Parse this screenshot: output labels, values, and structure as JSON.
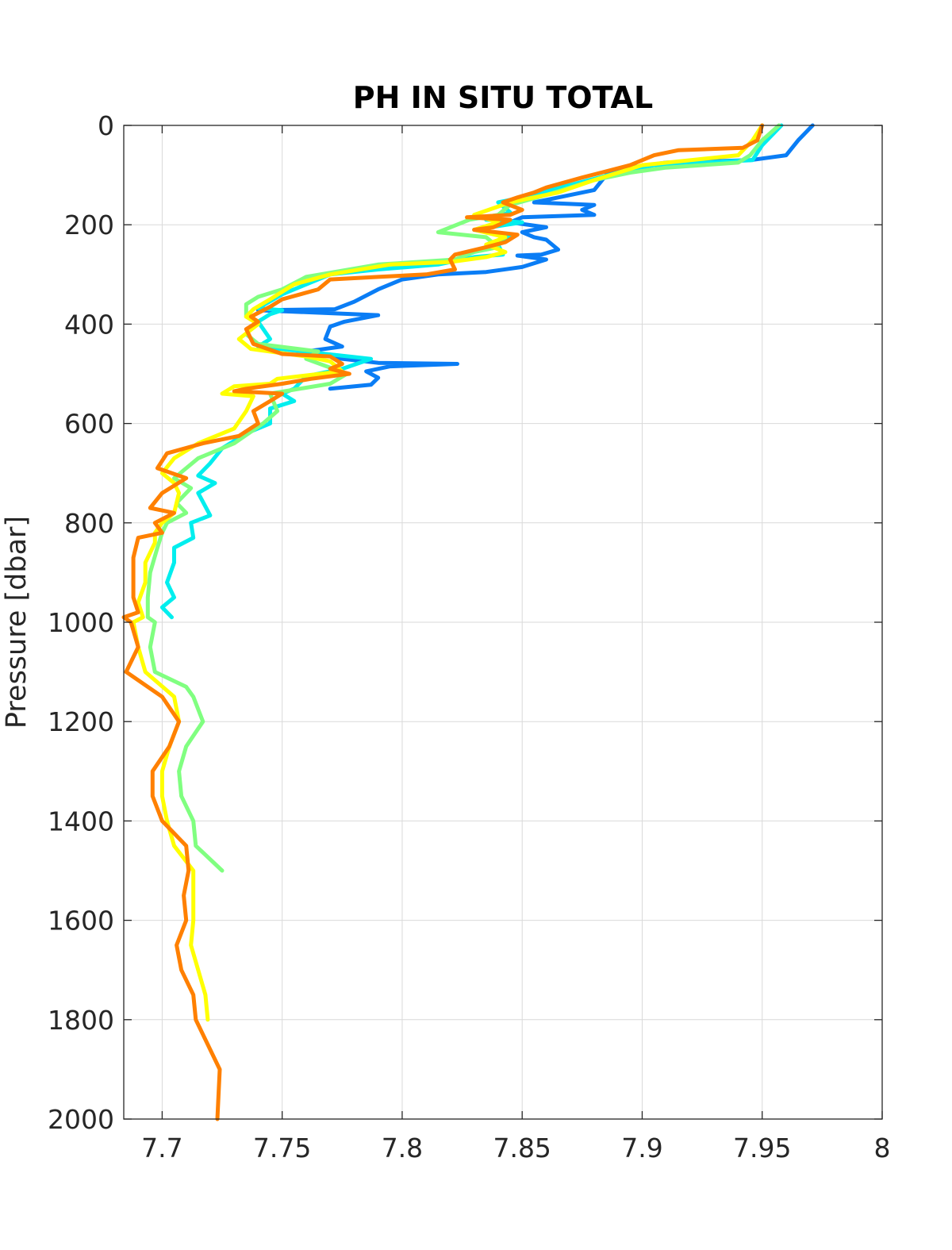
{
  "chart_data": {
    "type": "line",
    "title": "PH IN SITU TOTAL",
    "xlabel": "",
    "ylabel": "Pressure [dbar]",
    "xlim": [
      7.684,
      8.0
    ],
    "ylim": [
      0,
      2000
    ],
    "y_reversed": true,
    "grid": true,
    "legend": "none",
    "x_ticks": [
      "7.7",
      "7.75",
      "7.8",
      "7.85",
      "7.9",
      "7.95",
      "8"
    ],
    "y_ticks": [
      "0",
      "200",
      "400",
      "600",
      "800",
      "1000",
      "1200",
      "1400",
      "1600",
      "1800",
      "2000"
    ],
    "series": [
      {
        "color": "#0a7df5",
        "points": [
          [
            7.971,
            0
          ],
          [
            7.965,
            30
          ],
          [
            7.96,
            60
          ],
          [
            7.945,
            70
          ],
          [
            7.91,
            75
          ],
          [
            7.895,
            85
          ],
          [
            7.885,
            100
          ],
          [
            7.88,
            130
          ],
          [
            7.865,
            145
          ],
          [
            7.855,
            155
          ],
          [
            7.88,
            160
          ],
          [
            7.875,
            170
          ],
          [
            7.88,
            180
          ],
          [
            7.85,
            185
          ],
          [
            7.845,
            195
          ],
          [
            7.86,
            205
          ],
          [
            7.85,
            215
          ],
          [
            7.855,
            225
          ],
          [
            7.86,
            230
          ],
          [
            7.865,
            250
          ],
          [
            7.858,
            260
          ],
          [
            7.848,
            262
          ],
          [
            7.86,
            270
          ],
          [
            7.85,
            285
          ],
          [
            7.835,
            295
          ],
          [
            7.815,
            300
          ],
          [
            7.8,
            310
          ],
          [
            7.79,
            330
          ],
          [
            7.78,
            355
          ],
          [
            7.772,
            370
          ],
          [
            7.74,
            372
          ],
          [
            7.79,
            382
          ],
          [
            7.776,
            395
          ],
          [
            7.77,
            405
          ],
          [
            7.768,
            430
          ],
          [
            7.775,
            445
          ],
          [
            7.76,
            455
          ],
          [
            7.775,
            470
          ],
          [
            7.79,
            478
          ],
          [
            7.823,
            480
          ],
          [
            7.795,
            485
          ],
          [
            7.785,
            495
          ],
          [
            7.79,
            508
          ],
          [
            7.787,
            522
          ],
          [
            7.77,
            530
          ]
        ]
      },
      {
        "color": "#00eeee",
        "points": [
          [
            7.958,
            0
          ],
          [
            7.95,
            40
          ],
          [
            7.946,
            70
          ],
          [
            7.905,
            80
          ],
          [
            7.89,
            95
          ],
          [
            7.87,
            120
          ],
          [
            7.85,
            145
          ],
          [
            7.84,
            155
          ],
          [
            7.845,
            175
          ],
          [
            7.835,
            190
          ],
          [
            7.85,
            195
          ],
          [
            7.83,
            210
          ],
          [
            7.845,
            225
          ],
          [
            7.84,
            240
          ],
          [
            7.842,
            260
          ],
          [
            7.83,
            265
          ],
          [
            7.815,
            280
          ],
          [
            7.79,
            290
          ],
          [
            7.77,
            300
          ],
          [
            7.76,
            320
          ],
          [
            7.75,
            340
          ],
          [
            7.74,
            368
          ],
          [
            7.75,
            372
          ],
          [
            7.745,
            380
          ],
          [
            7.74,
            395
          ],
          [
            7.745,
            430
          ],
          [
            7.74,
            445
          ],
          [
            7.787,
            470
          ],
          [
            7.775,
            490
          ],
          [
            7.76,
            505
          ],
          [
            7.755,
            530
          ],
          [
            7.75,
            540
          ],
          [
            7.755,
            555
          ],
          [
            7.745,
            570
          ],
          [
            7.745,
            600
          ],
          [
            7.735,
            620
          ],
          [
            7.725,
            650
          ],
          [
            7.72,
            680
          ],
          [
            7.715,
            705
          ],
          [
            7.722,
            720
          ],
          [
            7.715,
            740
          ],
          [
            7.72,
            785
          ],
          [
            7.712,
            800
          ],
          [
            7.713,
            830
          ],
          [
            7.705,
            850
          ],
          [
            7.705,
            880
          ],
          [
            7.702,
            920
          ],
          [
            7.705,
            950
          ],
          [
            7.7,
            970
          ],
          [
            7.704,
            990
          ]
        ]
      },
      {
        "color": "#80ff80",
        "points": [
          [
            7.957,
            0
          ],
          [
            7.95,
            30
          ],
          [
            7.945,
            60
          ],
          [
            7.94,
            75
          ],
          [
            7.91,
            85
          ],
          [
            7.895,
            95
          ],
          [
            7.88,
            110
          ],
          [
            7.86,
            140
          ],
          [
            7.845,
            160
          ],
          [
            7.84,
            180
          ],
          [
            7.828,
            190
          ],
          [
            7.815,
            215
          ],
          [
            7.835,
            225
          ],
          [
            7.84,
            245
          ],
          [
            7.83,
            255
          ],
          [
            7.822,
            270
          ],
          [
            7.79,
            280
          ],
          [
            7.76,
            305
          ],
          [
            7.75,
            330
          ],
          [
            7.74,
            345
          ],
          [
            7.735,
            360
          ],
          [
            7.735,
            385
          ],
          [
            7.74,
            395
          ],
          [
            7.735,
            420
          ],
          [
            7.74,
            440
          ],
          [
            7.765,
            455
          ],
          [
            7.76,
            470
          ],
          [
            7.777,
            500
          ],
          [
            7.77,
            520
          ],
          [
            7.745,
            540
          ],
          [
            7.748,
            575
          ],
          [
            7.742,
            600
          ],
          [
            7.73,
            640
          ],
          [
            7.715,
            670
          ],
          [
            7.705,
            710
          ],
          [
            7.712,
            730
          ],
          [
            7.706,
            760
          ],
          [
            7.71,
            780
          ],
          [
            7.702,
            800
          ],
          [
            7.7,
            820
          ],
          [
            7.698,
            850
          ],
          [
            7.695,
            900
          ],
          [
            7.694,
            950
          ],
          [
            7.694,
            990
          ],
          [
            7.697,
            1000
          ],
          [
            7.695,
            1050
          ],
          [
            7.697,
            1100
          ],
          [
            7.71,
            1130
          ],
          [
            7.713,
            1150
          ],
          [
            7.717,
            1200
          ],
          [
            7.71,
            1250
          ],
          [
            7.707,
            1300
          ],
          [
            7.708,
            1350
          ],
          [
            7.713,
            1400
          ],
          [
            7.714,
            1450
          ],
          [
            7.725,
            1500
          ]
        ]
      },
      {
        "color": "#ffff00",
        "points": [
          [
            7.95,
            0
          ],
          [
            7.946,
            30
          ],
          [
            7.94,
            60
          ],
          [
            7.92,
            70
          ],
          [
            7.9,
            80
          ],
          [
            7.88,
            110
          ],
          [
            7.865,
            135
          ],
          [
            7.845,
            155
          ],
          [
            7.83,
            180
          ],
          [
            7.84,
            195
          ],
          [
            7.83,
            210
          ],
          [
            7.843,
            225
          ],
          [
            7.835,
            240
          ],
          [
            7.843,
            255
          ],
          [
            7.835,
            265
          ],
          [
            7.82,
            275
          ],
          [
            7.795,
            280
          ],
          [
            7.77,
            300
          ],
          [
            7.755,
            320
          ],
          [
            7.745,
            350
          ],
          [
            7.738,
            370
          ],
          [
            7.735,
            385
          ],
          [
            7.74,
            400
          ],
          [
            7.732,
            430
          ],
          [
            7.737,
            450
          ],
          [
            7.76,
            465
          ],
          [
            7.77,
            475
          ],
          [
            7.775,
            495
          ],
          [
            7.748,
            510
          ],
          [
            7.745,
            520
          ],
          [
            7.73,
            525
          ],
          [
            7.725,
            540
          ],
          [
            7.738,
            545
          ],
          [
            7.735,
            575
          ],
          [
            7.73,
            610
          ],
          [
            7.715,
            640
          ],
          [
            7.705,
            670
          ],
          [
            7.7,
            700
          ],
          [
            7.705,
            720
          ],
          [
            7.707,
            740
          ],
          [
            7.705,
            780
          ],
          [
            7.7,
            800
          ],
          [
            7.697,
            820
          ],
          [
            7.697,
            840
          ],
          [
            7.693,
            880
          ],
          [
            7.693,
            920
          ],
          [
            7.69,
            960
          ],
          [
            7.692,
            990
          ],
          [
            7.688,
            1000
          ],
          [
            7.69,
            1050
          ],
          [
            7.693,
            1100
          ],
          [
            7.705,
            1150
          ],
          [
            7.707,
            1200
          ],
          [
            7.703,
            1250
          ],
          [
            7.7,
            1300
          ],
          [
            7.7,
            1350
          ],
          [
            7.702,
            1400
          ],
          [
            7.705,
            1450
          ],
          [
            7.713,
            1500
          ],
          [
            7.713,
            1550
          ],
          [
            7.713,
            1600
          ],
          [
            7.712,
            1650
          ],
          [
            7.715,
            1700
          ],
          [
            7.718,
            1750
          ],
          [
            7.719,
            1800
          ]
        ]
      },
      {
        "color": "#ff8000",
        "points": [
          [
            7.95,
            0
          ],
          [
            7.948,
            30
          ],
          [
            7.942,
            45
          ],
          [
            7.915,
            50
          ],
          [
            7.905,
            60
          ],
          [
            7.895,
            80
          ],
          [
            7.875,
            105
          ],
          [
            7.86,
            125
          ],
          [
            7.855,
            135
          ],
          [
            7.848,
            145
          ],
          [
            7.842,
            155
          ],
          [
            7.85,
            170
          ],
          [
            7.845,
            180
          ],
          [
            7.827,
            185
          ],
          [
            7.845,
            190
          ],
          [
            7.838,
            205
          ],
          [
            7.83,
            210
          ],
          [
            7.848,
            220
          ],
          [
            7.843,
            235
          ],
          [
            7.835,
            245
          ],
          [
            7.822,
            260
          ],
          [
            7.82,
            270
          ],
          [
            7.822,
            290
          ],
          [
            7.81,
            300
          ],
          [
            7.79,
            305
          ],
          [
            7.77,
            310
          ],
          [
            7.765,
            330
          ],
          [
            7.75,
            350
          ],
          [
            7.745,
            365
          ],
          [
            7.737,
            385
          ],
          [
            7.74,
            395
          ],
          [
            7.735,
            410
          ],
          [
            7.738,
            440
          ],
          [
            7.75,
            460
          ],
          [
            7.77,
            465
          ],
          [
            7.775,
            480
          ],
          [
            7.77,
            490
          ],
          [
            7.778,
            500
          ],
          [
            7.762,
            510
          ],
          [
            7.75,
            520
          ],
          [
            7.735,
            530
          ],
          [
            7.73,
            535
          ],
          [
            7.75,
            540
          ],
          [
            7.745,
            555
          ],
          [
            7.738,
            575
          ],
          [
            7.74,
            600
          ],
          [
            7.732,
            625
          ],
          [
            7.717,
            640
          ],
          [
            7.702,
            660
          ],
          [
            7.698,
            690
          ],
          [
            7.71,
            710
          ],
          [
            7.7,
            740
          ],
          [
            7.695,
            770
          ],
          [
            7.705,
            780
          ],
          [
            7.697,
            800
          ],
          [
            7.7,
            820
          ],
          [
            7.69,
            830
          ],
          [
            7.688,
            870
          ],
          [
            7.688,
            910
          ],
          [
            7.688,
            950
          ],
          [
            7.69,
            980
          ],
          [
            7.684,
            990
          ],
          [
            7.687,
            1000
          ],
          [
            7.69,
            1050
          ],
          [
            7.685,
            1100
          ],
          [
            7.7,
            1150
          ],
          [
            7.707,
            1200
          ],
          [
            7.703,
            1250
          ],
          [
            7.696,
            1300
          ],
          [
            7.696,
            1350
          ],
          [
            7.7,
            1400
          ],
          [
            7.71,
            1450
          ],
          [
            7.711,
            1500
          ],
          [
            7.709,
            1550
          ],
          [
            7.71,
            1600
          ],
          [
            7.706,
            1650
          ],
          [
            7.708,
            1700
          ],
          [
            7.713,
            1750
          ],
          [
            7.714,
            1800
          ],
          [
            7.724,
            1900
          ],
          [
            7.723,
            2000
          ]
        ]
      }
    ]
  }
}
